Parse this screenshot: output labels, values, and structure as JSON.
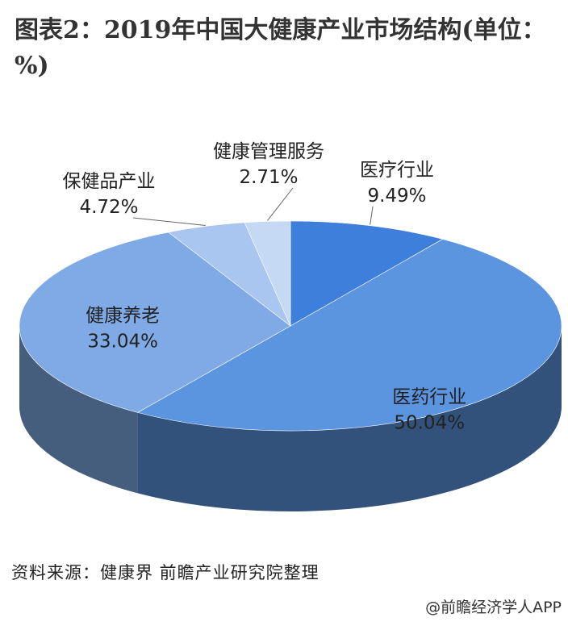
{
  "title": "图表2：2019年中国大健康产业市场结构(单位：%)",
  "source": "资料来源：健康界 前瞻产业研究院整理",
  "credit": "@前瞻经济学人APP",
  "chart_data": {
    "type": "pie",
    "style": "3d",
    "slices": [
      {
        "label": "医疗行业",
        "value": 9.49,
        "value_text": "9.49%",
        "color": "#3f7fdc"
      },
      {
        "label": "医药行业",
        "value": 50.04,
        "value_text": "50.04%",
        "color": "#5b95e0"
      },
      {
        "label": "健康养老",
        "value": 33.04,
        "value_text": "33.04%",
        "color": "#7faae5"
      },
      {
        "label": "保健品产业",
        "value": 4.72,
        "value_text": "4.72%",
        "color": "#a8c6ef"
      },
      {
        "label": "健康管理服务",
        "value": 2.71,
        "value_text": "2.71%",
        "color": "#c5d9f5"
      }
    ]
  }
}
